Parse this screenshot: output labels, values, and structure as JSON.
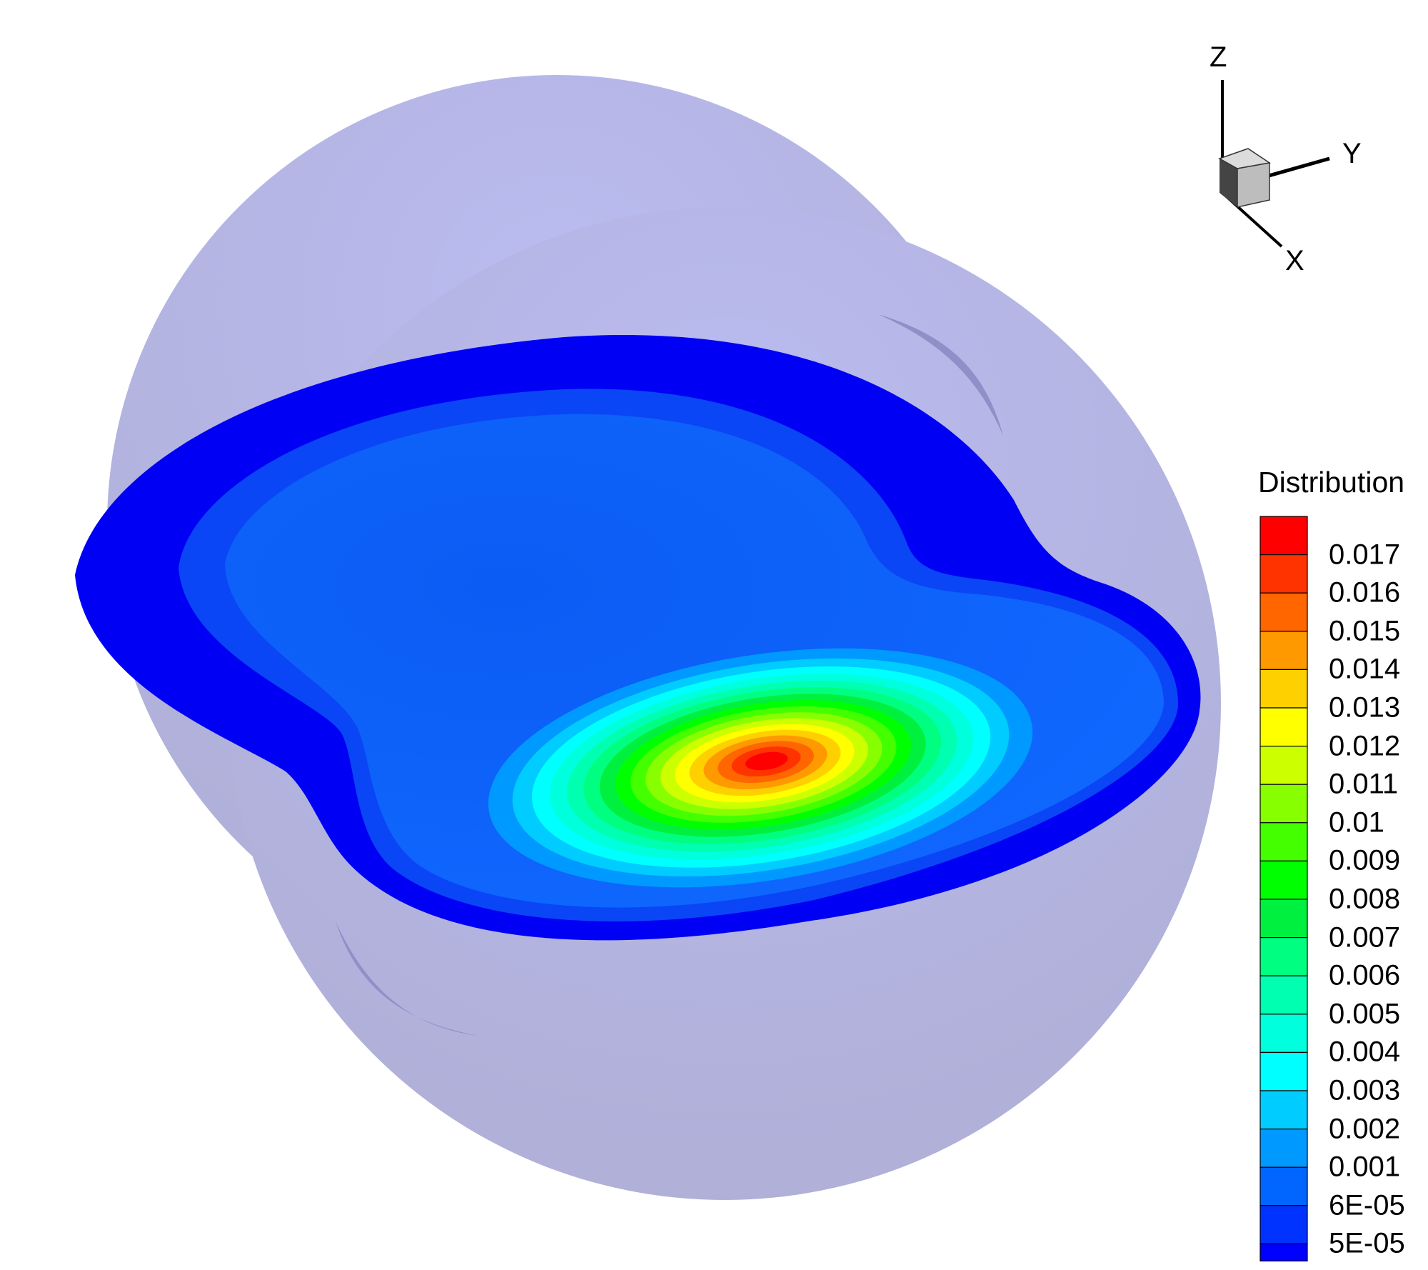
{
  "chart_data": {
    "type": "heatmap",
    "title": "",
    "legend": {
      "title": "Distribution",
      "placement": "right",
      "levels": [
        {
          "label": "0.017",
          "color": "#ff0000"
        },
        {
          "label": "0.016",
          "color": "#ff3300"
        },
        {
          "label": "0.015",
          "color": "#ff6600"
        },
        {
          "label": "0.014",
          "color": "#ff9900"
        },
        {
          "label": "0.013",
          "color": "#ffd000"
        },
        {
          "label": "0.012",
          "color": "#ffff00"
        },
        {
          "label": "0.011",
          "color": "#ccff00"
        },
        {
          "label": "0.01",
          "color": "#88ff00"
        },
        {
          "label": "0.009",
          "color": "#44ff00"
        },
        {
          "label": "0.008",
          "color": "#00ff00"
        },
        {
          "label": "0.007",
          "color": "#00f040"
        },
        {
          "label": "0.006",
          "color": "#00ff80"
        },
        {
          "label": "0.005",
          "color": "#00ffb0"
        },
        {
          "label": "0.004",
          "color": "#00ffdd"
        },
        {
          "label": "0.003",
          "color": "#00ffff"
        },
        {
          "label": "0.002",
          "color": "#00ccff"
        },
        {
          "label": "0.001",
          "color": "#0099ff"
        },
        {
          "label": "6E-05",
          "color": "#0066ff"
        },
        {
          "label": "5E-05",
          "color": "#0033ff"
        }
      ],
      "bottom_color": "#0000ff"
    },
    "axes_triad": {
      "labels": [
        "Z",
        "Y",
        "X"
      ]
    },
    "peak_value": 0.017,
    "sphere_color": "#b4b6e6"
  }
}
